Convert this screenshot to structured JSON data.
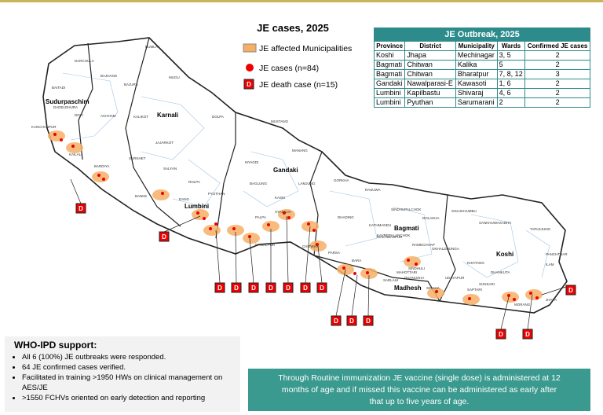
{
  "legend": {
    "title": "JE cases, 2025",
    "items": [
      "JE affected Municipalities",
      "JE cases (n=84)",
      "JE death case (n=15)"
    ],
    "death_symbol": "D"
  },
  "table": {
    "title": "JE Outbreak, 2025",
    "columns": [
      "Province",
      "District",
      "Municipality",
      "Wards",
      "Confirmed JE cases"
    ],
    "rows": [
      [
        "Koshi",
        "Jhapa",
        "Mechinagar",
        "3, 5",
        "2"
      ],
      [
        "Bagmati",
        "Chitwan",
        "Kalika",
        "5",
        "2"
      ],
      [
        "Bagmati",
        "Chitwan",
        "Bharatpur",
        "7, 8, 12",
        "3"
      ],
      [
        "Gandaki",
        "Nawalparasi-E",
        "Kawasoti",
        "1, 6",
        "2"
      ],
      [
        "Lumbini",
        "Kapilbastu",
        "Shivaraj",
        "4, 6",
        "2"
      ],
      [
        "Lumbini",
        "Pyuthan",
        "Sarumarani",
        "2",
        "2"
      ]
    ]
  },
  "map": {
    "provinces": [
      "Sudurpaschim",
      "Karnali",
      "Lumbini",
      "Gandaki",
      "Bagmati",
      "Madhesh",
      "Koshi"
    ],
    "districts": [
      "DARCHULA",
      "BAJHANG",
      "BAITADI",
      "DADELDHURA",
      "DOTI",
      "ACHHAM",
      "KAILALI",
      "KANCHANPUR",
      "HUMLA",
      "MUGU",
      "BAJURA",
      "KALIKOT",
      "DOLPA",
      "JAJARKOT",
      "SURKHET",
      "SALYAN",
      "BARDIYA",
      "BANKE",
      "DANG",
      "ROLPA",
      "PYUTHAN",
      "MUSTANG",
      "MANANG",
      "MYAGDI",
      "BAGLUNG",
      "KASKI",
      "LAMJUNG",
      "GORKHA",
      "RASUWA",
      "SINDHUPALCHOK",
      "DOLAKHA",
      "SOLUKHUMBU",
      "SANKHUWASABHA",
      "TAPLEJUNG",
      "PALPA",
      "SYANGJA",
      "DHADING",
      "KATHMANDU",
      "MAKAWANPUR",
      "CHITWAN",
      "PARSA",
      "BARA",
      "SARLAHI",
      "MAHOTTARI",
      "DHANUSHA",
      "SIRAHA",
      "SAPTARI",
      "SUNSARI",
      "MORANG",
      "JHAPA",
      "ILAM",
      "PANCHTHAR",
      "DHANKUTA",
      "KHOTANG",
      "UDAYAPUR",
      "OKHALDHUNGA",
      "RAMECHHAP",
      "SINDHULI",
      "KAVREPALANCHOK",
      "NAWALPUR"
    ],
    "death_markers": [
      "D",
      "D",
      "D",
      "D",
      "D",
      "D",
      "D",
      "D",
      "D",
      "D",
      "D",
      "D",
      "D",
      "D",
      "D"
    ]
  },
  "support": {
    "title": "WHO-IPD support:",
    "bullets": [
      "All 6 (100%) JE outbreaks were responded.",
      "64 JE confirmed cases verified.",
      "Facilitated in training >1950 HWs on clinical management on AES/JE",
      "&gt;1550 FCHVs oriented on early detection and reporting"
    ]
  },
  "note": {
    "lines": [
      "Through Routine immunization JE vaccine (single dose) is administered at 12",
      "months of age  and if missed this  vaccine can be administered as early after",
      "that up to five years of age."
    ]
  }
}
